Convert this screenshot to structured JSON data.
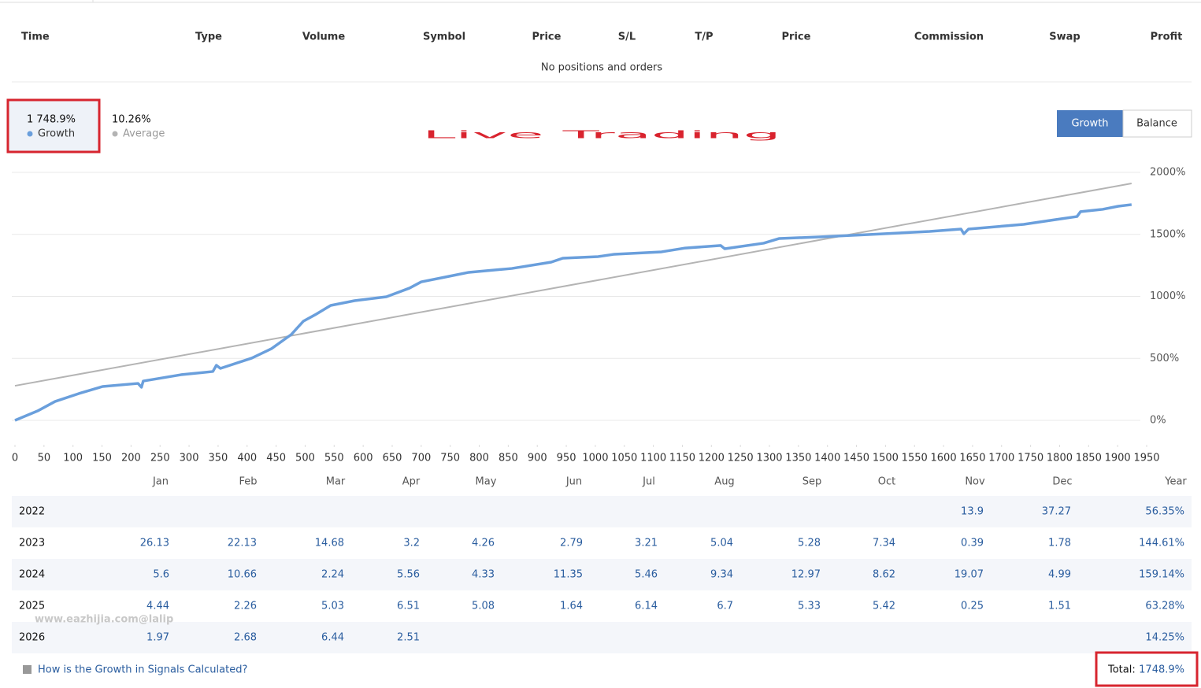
{
  "positions": {
    "columns": [
      "Time",
      "Type",
      "Volume",
      "Symbol",
      "Price",
      "S/L",
      "T/P",
      "Price",
      "Commission",
      "Swap",
      "Profit"
    ],
    "empty_text": "No positions and orders"
  },
  "toggle": [
    "Growth",
    "Balance"
  ],
  "chart_data": {
    "type": "line",
    "title": "Live Trading",
    "series": [
      {
        "name": "Growth",
        "legend_value": "1 748.9%",
        "color": "#6a9fdc",
        "x": [
          0,
          39,
          69,
          110,
          151,
          212,
          218,
          221,
          286,
          341,
          347,
          354,
          408,
          442,
          476,
          497,
          517,
          544,
          585,
          640,
          680,
          700,
          748,
          782,
          856,
          924,
          944,
          1005,
          1033,
          1114,
          1155,
          1216,
          1223,
          1290,
          1317,
          1385,
          1467,
          1576,
          1630,
          1635,
          1643,
          1738,
          1793,
          1830,
          1836,
          1874,
          1901,
          1924
        ],
        "values": [
          0,
          76,
          152,
          216,
          273,
          298,
          267,
          317,
          368,
          394,
          444,
          419,
          502,
          578,
          692,
          800,
          851,
          927,
          965,
          997,
          1067,
          1117,
          1162,
          1194,
          1225,
          1276,
          1308,
          1321,
          1340,
          1359,
          1390,
          1410,
          1384,
          1429,
          1467,
          1479,
          1498,
          1524,
          1543,
          1505,
          1543,
          1581,
          1619,
          1644,
          1683,
          1702,
          1727,
          1740
        ]
      },
      {
        "name": "Average",
        "legend_value": "10.26%",
        "color": "#b4b4b4",
        "x": [
          0,
          1924
        ],
        "values": [
          279,
          1911
        ]
      }
    ],
    "xlim": [
      0,
      1950
    ],
    "ylim": [
      0,
      2000
    ],
    "xticks": [
      0,
      50,
      100,
      150,
      200,
      250,
      300,
      350,
      400,
      450,
      500,
      550,
      600,
      650,
      700,
      750,
      800,
      850,
      900,
      950,
      1000,
      1050,
      1100,
      1150,
      1200,
      1250,
      1300,
      1350,
      1400,
      1450,
      1500,
      1550,
      1600,
      1650,
      1700,
      1750,
      1800,
      1850,
      1900,
      1950
    ],
    "yticks": [
      {
        "value": 0,
        "label": "0%"
      },
      {
        "value": 500,
        "label": "500%"
      },
      {
        "value": 1000,
        "label": "1000%"
      },
      {
        "value": 1500,
        "label": "1500%"
      },
      {
        "value": 2000,
        "label": "2000%"
      }
    ],
    "grid": true
  },
  "monthly": {
    "columns": [
      "Jan",
      "Feb",
      "Mar",
      "Apr",
      "May",
      "Jun",
      "Jul",
      "Aug",
      "Sep",
      "Oct",
      "Nov",
      "Dec",
      "Year"
    ],
    "rows": [
      {
        "year": "2022",
        "cells": [
          null,
          null,
          null,
          null,
          null,
          null,
          null,
          null,
          null,
          null,
          "13.9",
          "37.27",
          "56.35%"
        ]
      },
      {
        "year": "2023",
        "cells": [
          "26.13",
          "22.13",
          "14.68",
          "3.2",
          "4.26",
          "2.79",
          "3.21",
          "5.04",
          "5.28",
          "7.34",
          "0.39",
          "1.78",
          "144.61%"
        ]
      },
      {
        "year": "2024",
        "cells": [
          "5.6",
          "10.66",
          "2.24",
          "5.56",
          "4.33",
          "11.35",
          "5.46",
          "9.34",
          "12.97",
          "8.62",
          "19.07",
          "4.99",
          "159.14%"
        ]
      },
      {
        "year": "2025",
        "cells": [
          "4.44",
          "2.26",
          "5.03",
          "6.51",
          "5.08",
          "1.64",
          "6.14",
          "6.7",
          "5.33",
          "5.42",
          "0.25",
          "1.51",
          "63.28%"
        ]
      },
      {
        "year": "2026",
        "cells": [
          "1.97",
          "2.68",
          "6.44",
          "2.51",
          null,
          null,
          null,
          null,
          null,
          null,
          null,
          null,
          "14.25%"
        ]
      }
    ]
  },
  "watermark": "www.eazhijia.com@lalip",
  "footer": {
    "link": "How is the Growth in Signals Calculated?",
    "total_label": "Total:",
    "total_value": "1748.9%"
  }
}
